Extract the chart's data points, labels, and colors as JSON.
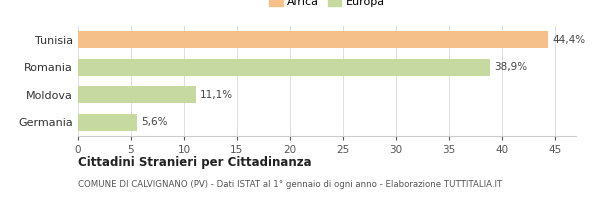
{
  "categories": [
    "Tunisia",
    "Romania",
    "Moldova",
    "Germania"
  ],
  "values": [
    44.4,
    38.9,
    11.1,
    5.6
  ],
  "labels": [
    "44,4%",
    "38,9%",
    "11,1%",
    "5,6%"
  ],
  "colors": [
    "#f5c08a",
    "#c5d9a0",
    "#c5d9a0",
    "#c5d9a0"
  ],
  "legend": [
    {
      "label": "Africa",
      "color": "#f5c08a"
    },
    {
      "label": "Europa",
      "color": "#c5d9a0"
    }
  ],
  "xlim": [
    0,
    47
  ],
  "xticks": [
    0,
    5,
    10,
    15,
    20,
    25,
    30,
    35,
    40,
    45
  ],
  "title_bold": "Cittadini Stranieri per Cittadinanza",
  "subtitle": "COMUNE DI CALVIGNANO (PV) - Dati ISTAT al 1° gennaio di ogni anno - Elaborazione TUTTITALIA.IT",
  "bg_color": "#ffffff",
  "bar_edge_color": "none"
}
